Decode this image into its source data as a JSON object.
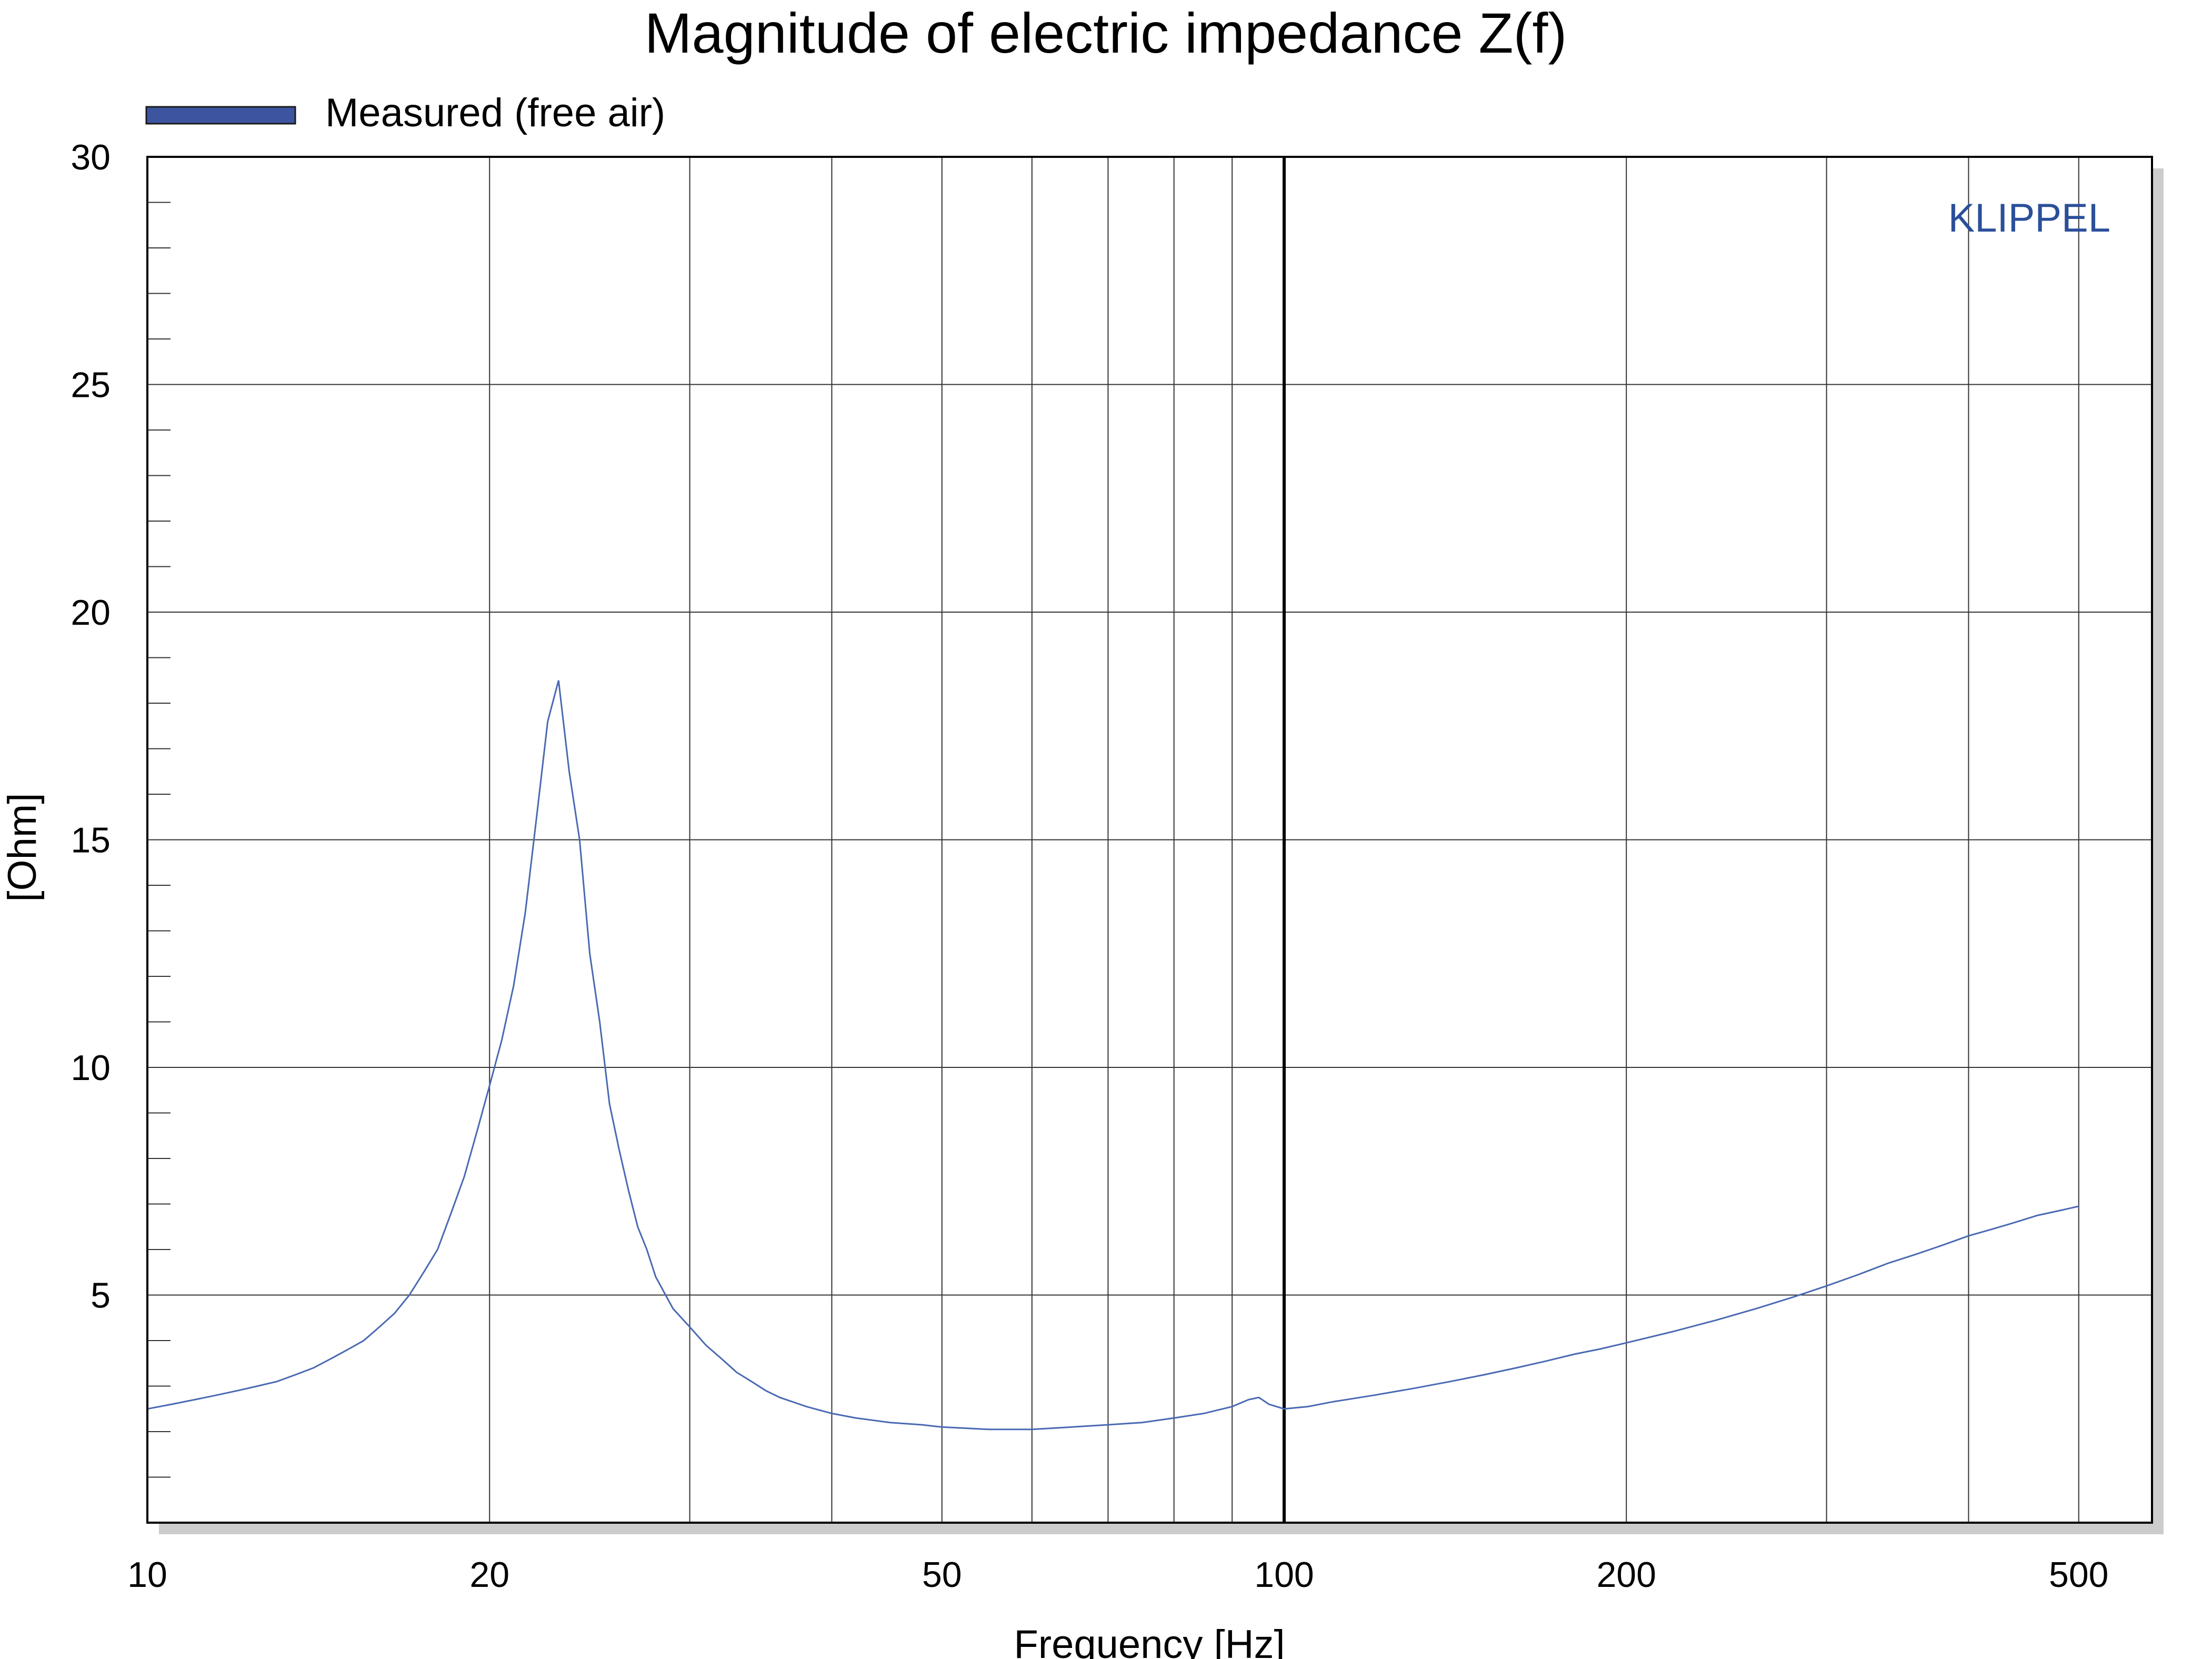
{
  "chart_data": {
    "type": "line",
    "title": "Magnitude of electric impedance Z(f)",
    "xlabel": "Frequency [Hz]",
    "ylabel": "[Ohm]",
    "xscale": "log",
    "xlim": [
      10,
      580
    ],
    "ylim": [
      0,
      30
    ],
    "x_ticks": [
      10,
      20,
      50,
      100,
      200,
      500
    ],
    "x_tick_labels": [
      "10",
      "20",
      "50",
      "100",
      "200",
      "500"
    ],
    "y_ticks": [
      5,
      10,
      15,
      20,
      25,
      30
    ],
    "y_tick_labels": [
      "5",
      "10",
      "15",
      "20",
      "25",
      "30"
    ],
    "grid": true,
    "legend_position": "top-left",
    "brand_label": "KLIPPEL",
    "colors": {
      "series": "#4a69b3",
      "legend_swatch": "#3d55a0",
      "brand": "#2b4f9a",
      "shadow": "#cccccc"
    },
    "series": [
      {
        "name": "Measured (free air)",
        "x": [
          10,
          10.5,
          11,
          11.5,
          12,
          12.5,
          13,
          13.5,
          14,
          14.5,
          15,
          15.5,
          16,
          16.5,
          17,
          17.5,
          18,
          18.5,
          19,
          19.5,
          20,
          20.5,
          21,
          21.5,
          22,
          22.5,
          23,
          23.5,
          24,
          24.5,
          25,
          25.5,
          26,
          26.5,
          27,
          27.5,
          28,
          29,
          30,
          31,
          32,
          33,
          34,
          35,
          36,
          38,
          40,
          42,
          45,
          48,
          50,
          55,
          60,
          65,
          70,
          75,
          80,
          85,
          90,
          93,
          95,
          97,
          100,
          105,
          110,
          120,
          130,
          140,
          150,
          160,
          170,
          180,
          190,
          200,
          220,
          240,
          260,
          280,
          300,
          320,
          340,
          360,
          380,
          400,
          420,
          440,
          460,
          480,
          500
        ],
        "values": [
          2.5,
          2.6,
          2.7,
          2.8,
          2.9,
          3.0,
          3.1,
          3.25,
          3.4,
          3.6,
          3.8,
          4.0,
          4.3,
          4.6,
          5.0,
          5.5,
          6.0,
          6.8,
          7.6,
          8.6,
          9.6,
          10.6,
          11.8,
          13.4,
          15.5,
          17.6,
          18.5,
          16.5,
          15.0,
          12.5,
          11.0,
          9.2,
          8.2,
          7.3,
          6.5,
          6.0,
          5.4,
          4.7,
          4.3,
          3.9,
          3.6,
          3.3,
          3.1,
          2.9,
          2.75,
          2.55,
          2.4,
          2.3,
          2.2,
          2.15,
          2.1,
          2.05,
          2.05,
          2.1,
          2.15,
          2.2,
          2.3,
          2.4,
          2.55,
          2.7,
          2.75,
          2.6,
          2.5,
          2.55,
          2.65,
          2.8,
          2.95,
          3.1,
          3.25,
          3.4,
          3.55,
          3.7,
          3.82,
          3.95,
          4.2,
          4.45,
          4.7,
          4.95,
          5.2,
          5.45,
          5.7,
          5.9,
          6.1,
          6.3,
          6.45,
          6.6,
          6.75,
          6.85,
          6.95
        ]
      }
    ]
  }
}
